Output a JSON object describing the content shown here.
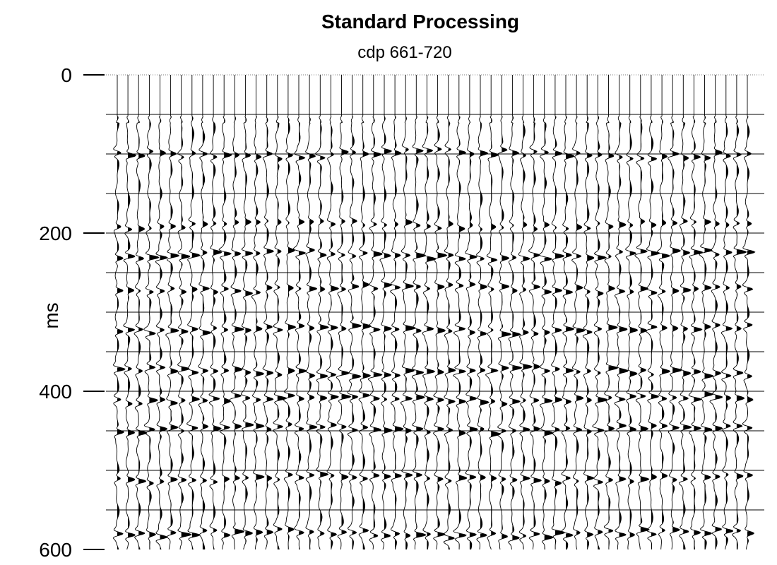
{
  "chart_data": {
    "type": "seismic-wiggle",
    "title": "Standard Processing",
    "subtitle": "cdp 661-720",
    "ylabel": "ms",
    "y_ticks": [
      0,
      200,
      400,
      600
    ],
    "ylim": [
      0,
      600
    ],
    "y_inverted": true,
    "cdp_range": [
      661,
      720
    ],
    "trace_count": 60,
    "timing_lines_ms": [
      50,
      100,
      150,
      200,
      250,
      300,
      350,
      400,
      450,
      500,
      550
    ],
    "variable_area_fill": "positive-black",
    "reflectors_ms": [
      {
        "t": 100,
        "strength": 0.75
      },
      {
        "t": 190,
        "strength": 0.55
      },
      {
        "t": 228,
        "strength": 0.95
      },
      {
        "t": 270,
        "strength": 0.8
      },
      {
        "t": 322,
        "strength": 0.9
      },
      {
        "t": 375,
        "strength": 0.95
      },
      {
        "t": 410,
        "strength": 0.9
      },
      {
        "t": 448,
        "strength": 0.85
      },
      {
        "t": 510,
        "strength": 0.8
      },
      {
        "t": 580,
        "strength": 0.95
      }
    ],
    "colors": {
      "trace": "#000000",
      "fill": "#000000",
      "timing_line": "#000000",
      "background": "#ffffff"
    }
  }
}
